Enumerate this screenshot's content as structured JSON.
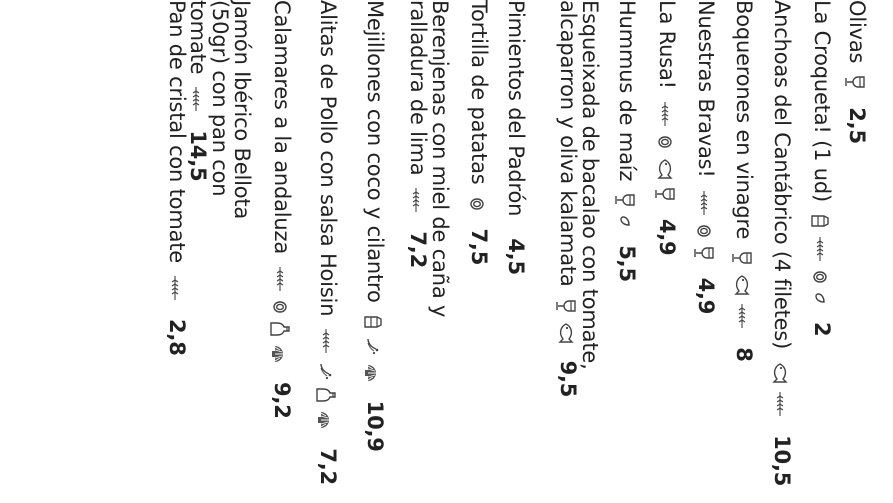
{
  "menu": {
    "items": [
      {
        "name": "Olivas",
        "price": "2,5",
        "allergens": [
          "wine-glass-icon"
        ]
      },
      {
        "name": "La Croqueta! (1 ud)",
        "price": "2",
        "allergens": [
          "milk-carton-icon",
          "wheat-icon",
          "egg-icon",
          "nut-icon"
        ]
      },
      {
        "name": "Anchoas del Cantábrico (4 filetes)",
        "price": "10,5",
        "allergens": [
          "fish-icon",
          "wheat-icon"
        ]
      },
      {
        "name": "Boquerones en vinagre",
        "price": "8",
        "allergens": [
          "wine-glass-icon",
          "fish-icon",
          "wheat-icon"
        ]
      },
      {
        "name": "Nuestras Bravas!",
        "price": "4,9",
        "allergens": [
          "wheat-icon",
          "egg-icon",
          "wine-glass-icon"
        ]
      },
      {
        "name": "La Rusa!",
        "price": "4,9",
        "allergens": [
          "wheat-icon",
          "egg-icon",
          "fish-icon",
          "wine-glass-icon"
        ]
      },
      {
        "name": "Hummus de maíz",
        "price": "5,5",
        "allergens": [
          "wine-glass-icon",
          "nut-icon"
        ]
      },
      {
        "name": "Esqueixada de bacalao con tomate, alcaparron y oliva kalamata",
        "price": "9,5",
        "allergens": [
          "wine-glass-icon",
          "fish-icon"
        ]
      },
      {
        "name": "Pimientos del Padrón",
        "price": "4,5",
        "allergens": []
      },
      {
        "name": "Tortilla de patatas",
        "price": "7,5",
        "allergens": [
          "egg-icon"
        ]
      },
      {
        "name": "Berenjenas con miel de caña y ralladura de lima",
        "price": "7,2",
        "allergens": [
          "wheat-icon"
        ]
      },
      {
        "name": "Mejillones con coco y cilantro",
        "price": "10,9",
        "allergens": [
          "milk-carton-icon",
          "mollusc-icon",
          "shell-icon"
        ]
      },
      {
        "name": "Alitas de Pollo con salsa Hoisin",
        "price": "7,2",
        "allergens": [
          "wheat-icon",
          "mollusc-icon",
          "sesame-bottle-icon",
          "shell-icon"
        ]
      },
      {
        "name": "Calamares a la andaluza",
        "price": "9,2",
        "allergens": [
          "wheat-icon",
          "egg-icon",
          "sesame-bottle-icon",
          "shell-icon"
        ]
      },
      {
        "name": "Jamón Ibérico Bellota (50gr) con pan con tomate",
        "price": "14,5",
        "allergens": [
          "wheat-icon"
        ]
      },
      {
        "name": "Pan de cristal con tomate",
        "price": "2,8",
        "allergens": [
          "wheat-icon"
        ]
      }
    ]
  }
}
